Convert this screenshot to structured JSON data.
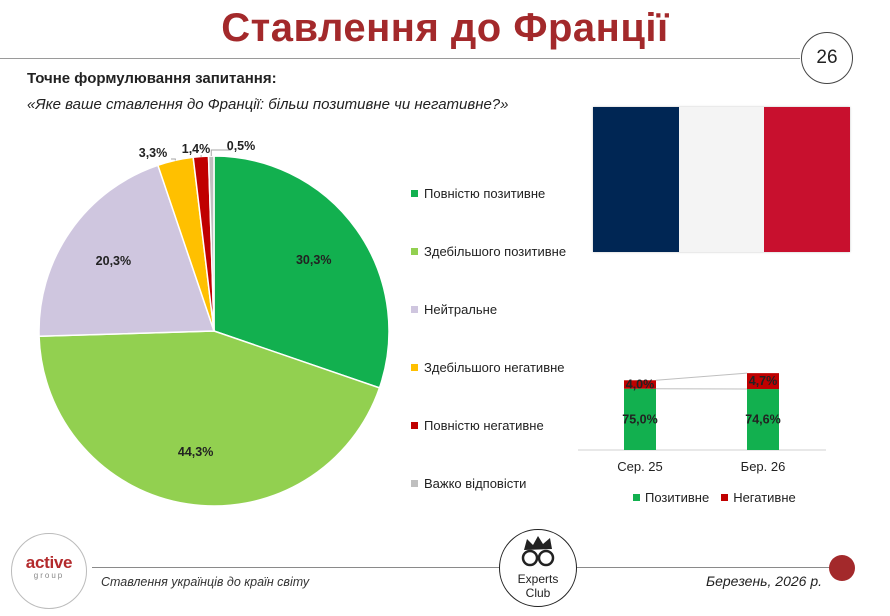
{
  "header": {
    "title": "Ставлення до Франції",
    "page_number": "26"
  },
  "question": {
    "label": "Точне формулювання запитання:",
    "text": "«Яке ваше ставлення до Франції: більш позитивне чи негативне?»"
  },
  "chart_data": [
    {
      "type": "pie",
      "categories": [
        "Повністю позитивне",
        "Здебільшого позитивне",
        "Нейтральне",
        "Здебільшого негативне",
        "Повністю негативне",
        "Важко відповісти"
      ],
      "values": [
        30.3,
        44.3,
        20.3,
        3.3,
        1.4,
        0.5
      ],
      "labels": [
        "30,3%",
        "44,3%",
        "20,3%",
        "3,3%",
        "1,4%",
        "0,5%"
      ],
      "colors": [
        "#12b04f",
        "#92d050",
        "#cfc6df",
        "#ffc000",
        "#c00000",
        "#bfbfbf"
      ],
      "legend": "right"
    },
    {
      "type": "bar",
      "stacked": true,
      "categories": [
        "Сер. 25",
        "Бер. 26"
      ],
      "series": [
        {
          "name": "Позитивне",
          "values": [
            75.0,
            74.6
          ],
          "labels": [
            "75,0%",
            "74,6%"
          ],
          "color": "#12b04f"
        },
        {
          "name": "Негативне",
          "values": [
            4.0,
            4.7
          ],
          "labels": [
            "4,0%",
            "4,7%"
          ],
          "color": "#c00000"
        }
      ],
      "legend": "bottom"
    }
  ],
  "flag": {
    "colors": [
      "#002654",
      "#f4f4f4",
      "#c8102e"
    ]
  },
  "footer": {
    "logo": "active",
    "logo_sub": "group",
    "subtitle": "Ставлення українців до країн світу",
    "date": "Березень, 2026 р.",
    "partner_line1": "Experts",
    "partner_line2": "Club"
  }
}
